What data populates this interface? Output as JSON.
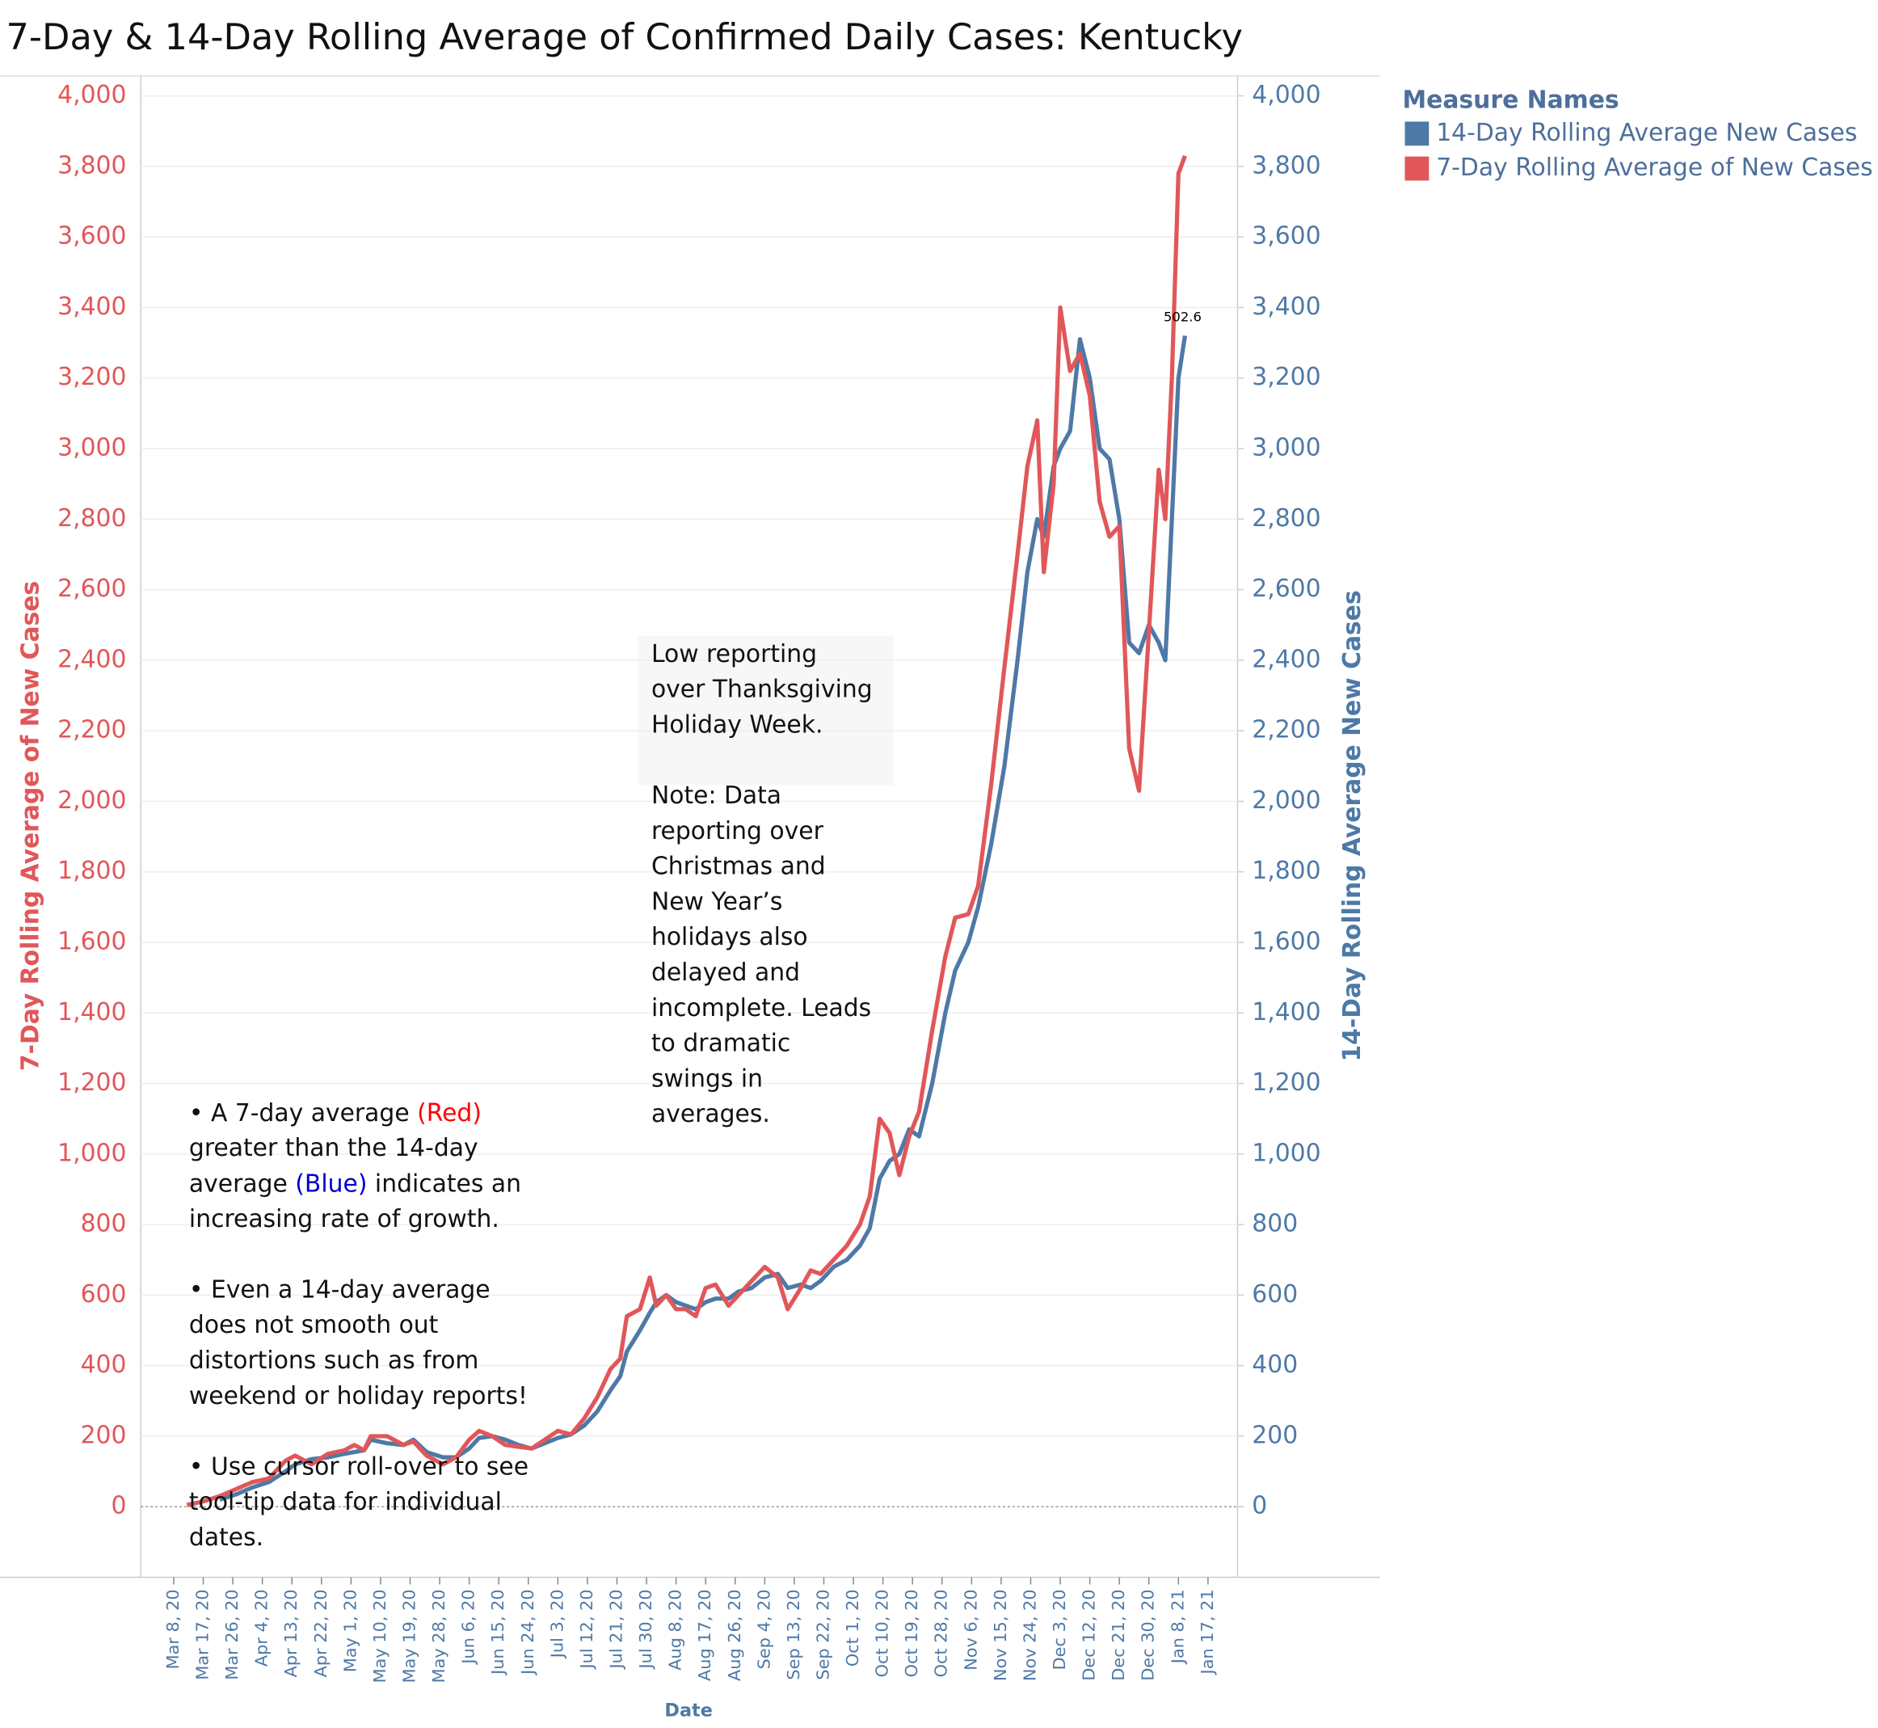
{
  "chart_data": {
    "type": "line",
    "title": "7-Day & 14-Day Rolling Average of Confirmed Daily  Cases:  Kentucky",
    "x_label": "Date",
    "y_label": "7-Day Rolling  Average of New Cases",
    "y2_label": "14-Day Rolling Average New Cases",
    "legend_title": "Measure Names",
    "legend": "right",
    "grid": true,
    "x": [
      "2020-03-12",
      "2020-03-17",
      "2020-03-22",
      "2020-03-27",
      "2020-04-01",
      "2020-04-06",
      "2020-04-11",
      "2020-04-14",
      "2020-04-19",
      "2020-04-24",
      "2020-04-29",
      "2020-05-02",
      "2020-05-05",
      "2020-05-07",
      "2020-05-12",
      "2020-05-17",
      "2020-05-20",
      "2020-05-24",
      "2020-05-29",
      "2020-06-02",
      "2020-06-06",
      "2020-06-09",
      "2020-06-13",
      "2020-06-17",
      "2020-06-21",
      "2020-06-25",
      "2020-06-29",
      "2020-07-03",
      "2020-07-07",
      "2020-07-11",
      "2020-07-15",
      "2020-07-19",
      "2020-07-22",
      "2020-07-24",
      "2020-07-28",
      "2020-07-31",
      "2020-08-02",
      "2020-08-05",
      "2020-08-08",
      "2020-08-11",
      "2020-08-14",
      "2020-08-17",
      "2020-08-20",
      "2020-08-24",
      "2020-08-27",
      "2020-08-31",
      "2020-09-04",
      "2020-09-08",
      "2020-09-11",
      "2020-09-15",
      "2020-09-18",
      "2020-09-21",
      "2020-09-25",
      "2020-09-29",
      "2020-10-03",
      "2020-10-06",
      "2020-10-09",
      "2020-10-12",
      "2020-10-15",
      "2020-10-18",
      "2020-10-21",
      "2020-10-25",
      "2020-10-29",
      "2020-11-01",
      "2020-11-05",
      "2020-11-08",
      "2020-11-12",
      "2020-11-16",
      "2020-11-20",
      "2020-11-23",
      "2020-11-26",
      "2020-11-28",
      "2020-12-01",
      "2020-12-03",
      "2020-12-06",
      "2020-12-09",
      "2020-12-12",
      "2020-12-15",
      "2020-12-18",
      "2020-12-21",
      "2020-12-24",
      "2020-12-27",
      "2020-12-30",
      "2021-01-02",
      "2021-01-04",
      "2021-01-06",
      "2021-01-08",
      "2021-01-10"
    ],
    "series": [
      {
        "name": "14-Day Rolling Average New Cases",
        "color": "#4e79a7",
        "axis": "y2",
        "values": [
          null,
          null,
          20,
          35,
          55,
          70,
          100,
          120,
          135,
          140,
          150,
          155,
          160,
          190,
          180,
          175,
          190,
          155,
          140,
          140,
          165,
          195,
          200,
          190,
          175,
          165,
          180,
          195,
          205,
          230,
          270,
          330,
          370,
          440,
          500,
          550,
          580,
          600,
          580,
          570,
          560,
          580,
          590,
          590,
          610,
          620,
          650,
          660,
          620,
          630,
          620,
          640,
          680,
          700,
          740,
          790,
          930,
          980,
          1000,
          1070,
          1050,
          1200,
          1400,
          1520,
          1600,
          1700,
          1880,
          2100,
          2400,
          2650,
          2800,
          2750,
          2950,
          3000,
          3050,
          3310,
          3200,
          3000,
          2970,
          2800,
          2450,
          2420,
          2500,
          2450,
          2400,
          2800,
          3200,
          3320
        ]
      },
      {
        "name": "7-Day Rolling  Average of New Cases",
        "color": "#e15759",
        "axis": "y",
        "values": [
          5,
          15,
          30,
          50,
          70,
          80,
          130,
          145,
          120,
          150,
          160,
          175,
          160,
          200,
          200,
          175,
          185,
          145,
          120,
          140,
          190,
          215,
          200,
          175,
          170,
          165,
          190,
          215,
          205,
          250,
          310,
          390,
          420,
          540,
          560,
          650,
          570,
          600,
          560,
          560,
          540,
          620,
          630,
          570,
          600,
          640,
          680,
          650,
          560,
          620,
          670,
          660,
          700,
          740,
          800,
          880,
          1100,
          1060,
          940,
          1050,
          1120,
          1350,
          1560,
          1670,
          1680,
          1760,
          2050,
          2380,
          2700,
          2950,
          3080,
          2650,
          2900,
          3400,
          3220,
          3270,
          3150,
          2850,
          2750,
          2780,
          2150,
          2030,
          2480,
          2940,
          2800,
          3200,
          3780,
          3830
        ]
      }
    ],
    "point_label": "502.6",
    "xlim": [
      "2020-02-27",
      "2021-01-26"
    ],
    "xticks": [
      {
        "value": "2020-03-08",
        "label": "Mar 8, 20"
      },
      {
        "value": "2020-03-17",
        "label": "Mar 17, 20"
      },
      {
        "value": "2020-03-26",
        "label": "Mar 26, 20"
      },
      {
        "value": "2020-04-04",
        "label": "Apr 4, 20"
      },
      {
        "value": "2020-04-13",
        "label": "Apr 13, 20"
      },
      {
        "value": "2020-04-22",
        "label": "Apr 22, 20"
      },
      {
        "value": "2020-05-01",
        "label": "May 1, 20"
      },
      {
        "value": "2020-05-10",
        "label": "May 10, 20"
      },
      {
        "value": "2020-05-19",
        "label": "May 19, 20"
      },
      {
        "value": "2020-05-28",
        "label": "May 28, 20"
      },
      {
        "value": "2020-06-06",
        "label": "Jun 6, 20"
      },
      {
        "value": "2020-06-15",
        "label": "Jun 15, 20"
      },
      {
        "value": "2020-06-24",
        "label": "Jun 24, 20"
      },
      {
        "value": "2020-07-03",
        "label": "Jul 3, 20"
      },
      {
        "value": "2020-07-12",
        "label": "Jul 12, 20"
      },
      {
        "value": "2020-07-21",
        "label": "Jul 21, 20"
      },
      {
        "value": "2020-07-30",
        "label": "Jul 30, 20"
      },
      {
        "value": "2020-08-08",
        "label": "Aug 8, 20"
      },
      {
        "value": "2020-08-17",
        "label": "Aug 17, 20"
      },
      {
        "value": "2020-08-26",
        "label": "Aug 26, 20"
      },
      {
        "value": "2020-09-04",
        "label": "Sep 4, 20"
      },
      {
        "value": "2020-09-13",
        "label": "Sep 13, 20"
      },
      {
        "value": "2020-09-22",
        "label": "Sep 22, 20"
      },
      {
        "value": "2020-10-01",
        "label": "Oct 1, 20"
      },
      {
        "value": "2020-10-10",
        "label": "Oct 10, 20"
      },
      {
        "value": "2020-10-19",
        "label": "Oct 19, 20"
      },
      {
        "value": "2020-10-28",
        "label": "Oct 28, 20"
      },
      {
        "value": "2020-11-06",
        "label": "Nov 6, 20"
      },
      {
        "value": "2020-11-15",
        "label": "Nov 15, 20"
      },
      {
        "value": "2020-11-24",
        "label": "Nov 24, 20"
      },
      {
        "value": "2020-12-03",
        "label": "Dec 3, 20"
      },
      {
        "value": "2020-12-12",
        "label": "Dec 12, 20"
      },
      {
        "value": "2020-12-21",
        "label": "Dec 21, 20"
      },
      {
        "value": "2020-12-30",
        "label": "Dec 30, 20"
      },
      {
        "value": "2021-01-08",
        "label": "Jan 8, 21"
      },
      {
        "value": "2021-01-17",
        "label": "Jan 17, 21"
      }
    ],
    "ylim": [
      -200,
      4050
    ],
    "yticks": [
      0,
      200,
      400,
      600,
      800,
      {
        "value": 1000,
        "label": "1,000"
      },
      {
        "value": 1200,
        "label": "1,200"
      },
      {
        "value": 1400,
        "label": "1,400"
      },
      {
        "value": 1600,
        "label": "1,600"
      },
      {
        "value": 1800,
        "label": "1,800"
      },
      {
        "value": 2000,
        "label": "2,000"
      },
      {
        "value": 2200,
        "label": "2,200"
      },
      {
        "value": 2400,
        "label": "2,400"
      },
      {
        "value": 2600,
        "label": "2,600"
      },
      {
        "value": 2800,
        "label": "2,800"
      },
      {
        "value": 3000,
        "label": "3,000"
      },
      {
        "value": 3200,
        "label": "3,200"
      },
      {
        "value": 3400,
        "label": "3,400"
      },
      {
        "value": 3600,
        "label": "3,600"
      },
      {
        "value": 3800,
        "label": "3,800"
      },
      {
        "value": 4000,
        "label": "4,000"
      }
    ],
    "y2lim": [
      -200,
      4050
    ],
    "y2ticks": [
      0,
      200,
      400,
      600,
      800,
      {
        "value": 1000,
        "label": "1,000"
      },
      {
        "value": 1200,
        "label": "1,200"
      },
      {
        "value": 1400,
        "label": "1,400"
      },
      {
        "value": 1600,
        "label": "1,600"
      },
      {
        "value": 1800,
        "label": "1,800"
      },
      {
        "value": 2000,
        "label": "2,000"
      },
      {
        "value": 2200,
        "label": "2,200"
      },
      {
        "value": 2400,
        "label": "2,400"
      },
      {
        "value": 2600,
        "label": "2,600"
      },
      {
        "value": 2800,
        "label": "2,800"
      },
      {
        "value": 3000,
        "label": "3,000"
      },
      {
        "value": 3200,
        "label": "3,200"
      },
      {
        "value": 3400,
        "label": "3,400"
      },
      {
        "value": 3600,
        "label": "3,600"
      },
      {
        "value": 3800,
        "label": "3,800"
      },
      {
        "value": 4000,
        "label": "4,000"
      }
    ],
    "annotations": [
      {
        "lines": [
          "Low reporting",
          "over Thanksgiving",
          "Holiday Week.",
          "",
          "Note: Data",
          "reporting over",
          "Christmas and",
          "New Year’s",
          "holidays also",
          "delayed and",
          "incomplete. Leads",
          "to dramatic",
          "swings in",
          "averages."
        ]
      },
      {
        "lines": [
          [
            "• A 7-day average ",
            {
              "text": "(Red)",
              "color": "#ff0000"
            }
          ],
          "greater than the 14-day",
          [
            "average ",
            {
              "text": "(Blue)",
              "color": "#0000cc"
            },
            " indicates an"
          ],
          "increasing rate of growth.",
          "",
          "• Even a 14-day average",
          "does not smooth out",
          "distortions such as from",
          "weekend or holiday reports!",
          "",
          "• Use cursor roll-over to see",
          "tool-tip data for individual",
          "dates."
        ]
      }
    ]
  }
}
